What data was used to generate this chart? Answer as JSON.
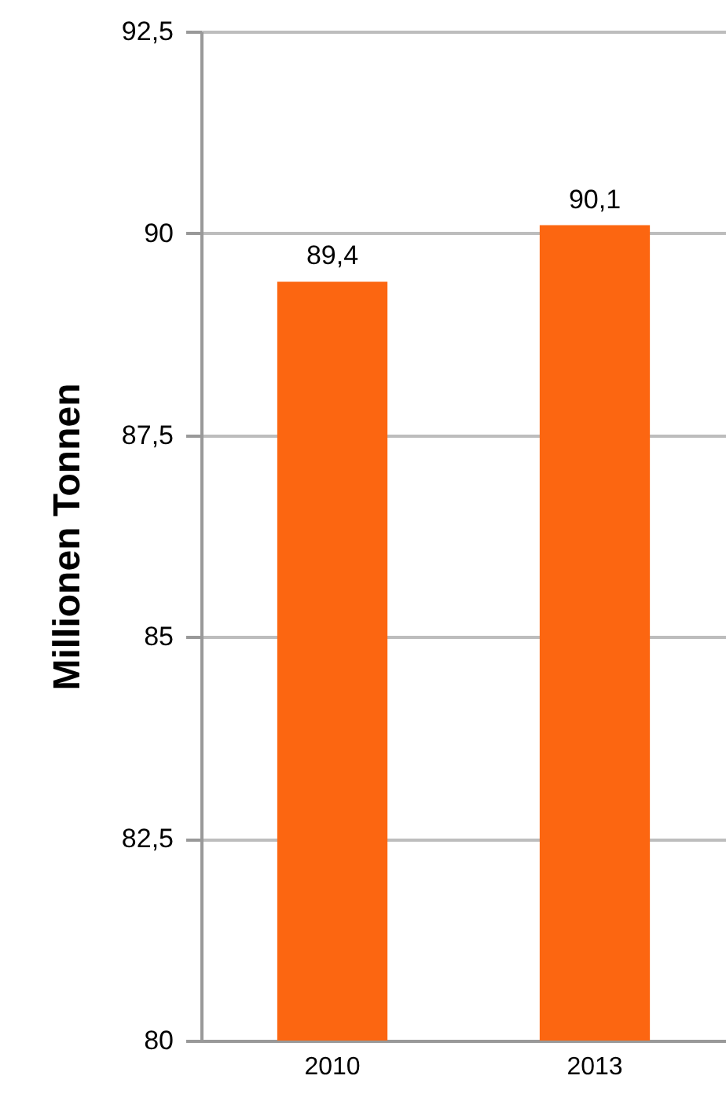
{
  "chart_data": {
    "type": "bar",
    "ylabel": "Millionen Tonnen",
    "categories": [
      "2010",
      "2013"
    ],
    "values": [
      89.4,
      90.1
    ],
    "value_labels": [
      "89,4",
      "90,1"
    ],
    "color": "#fc6611",
    "ylim": [
      80,
      92.5
    ],
    "yticks": [
      80,
      {
        "value": 82.5,
        "label": "82,5"
      },
      85,
      {
        "value": 87.5,
        "label": "87,5"
      },
      90,
      {
        "value": 92.5,
        "label": "92,5"
      }
    ],
    "grid": "y"
  }
}
